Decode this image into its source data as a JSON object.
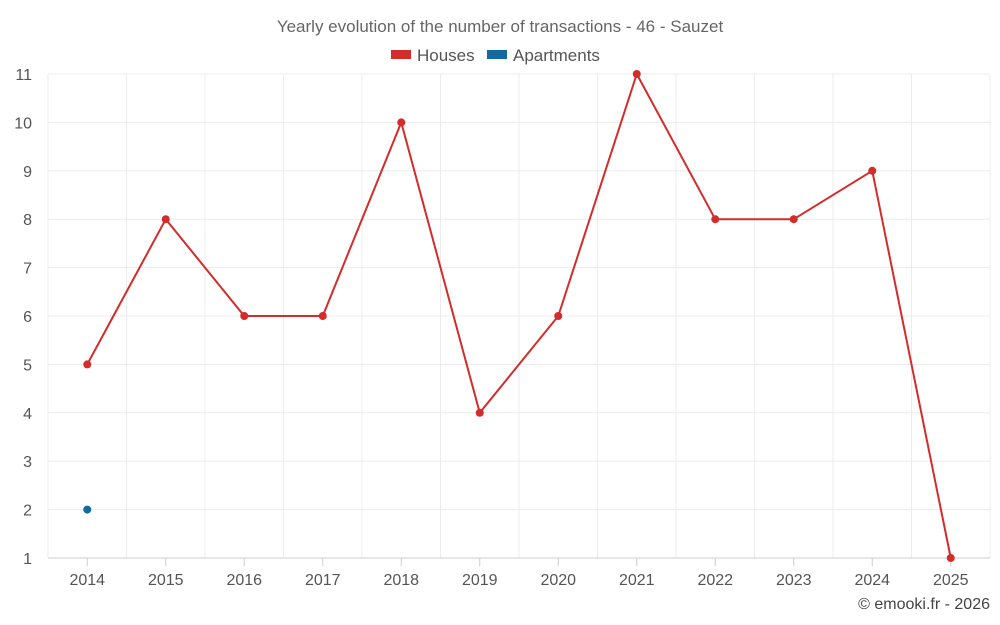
{
  "chart_data": {
    "type": "line",
    "title": "Yearly evolution of the number of transactions - 46 - Sauzet",
    "categories": [
      "2014",
      "2015",
      "2016",
      "2017",
      "2018",
      "2019",
      "2020",
      "2021",
      "2022",
      "2023",
      "2024",
      "2025"
    ],
    "series": [
      {
        "name": "Houses",
        "color": "#d42b2b",
        "values": [
          5,
          8,
          6,
          6,
          10,
          4,
          6,
          11,
          8,
          8,
          9,
          1
        ]
      },
      {
        "name": "Apartments",
        "color": "#136a9e",
        "values": [
          2,
          null,
          null,
          null,
          null,
          null,
          null,
          null,
          null,
          null,
          null,
          null
        ]
      }
    ],
    "yticks": [
      1,
      2,
      3,
      4,
      5,
      6,
      7,
      8,
      9,
      10,
      11
    ],
    "ylim": [
      1,
      11
    ],
    "xlabel": "",
    "ylabel": "",
    "legend_position": "top-center",
    "grid": true
  },
  "credit": "© emooki.fr - 2026"
}
